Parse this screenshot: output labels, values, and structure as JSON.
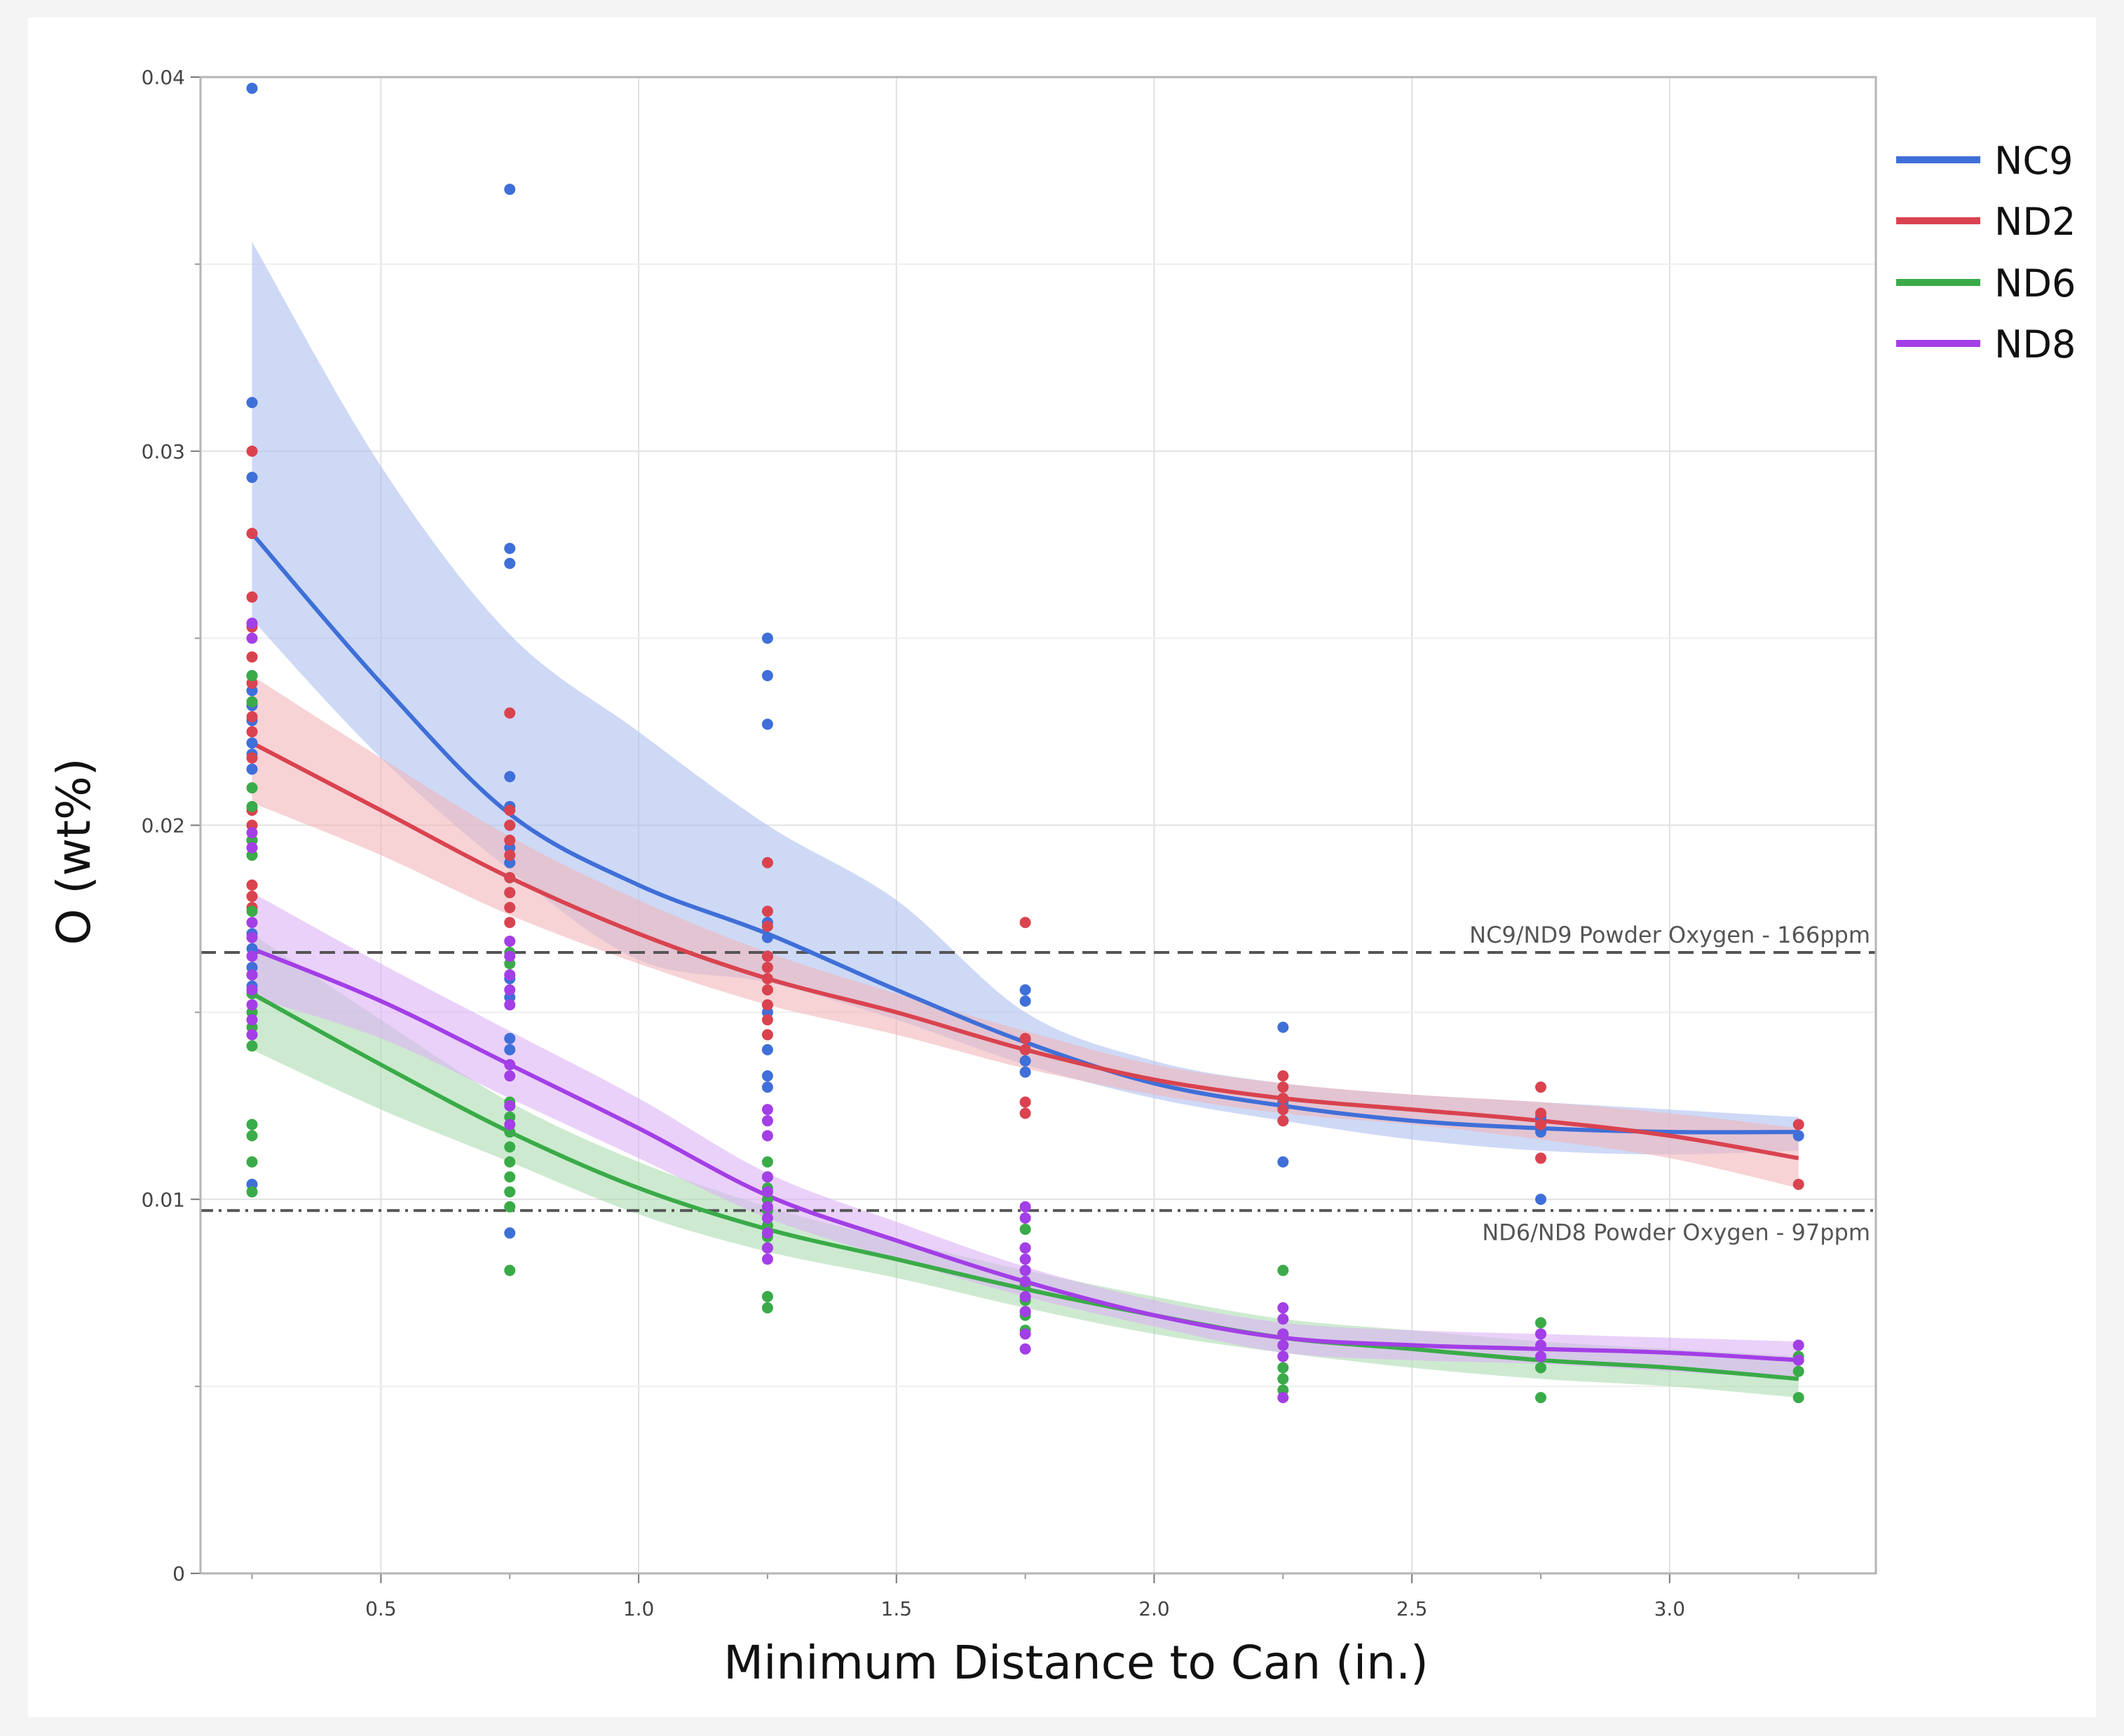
{
  "chart_data": {
    "type": "scatter",
    "title": "",
    "xlabel": "Minimum Distance to Can (in.)",
    "ylabel": "O (wt%)",
    "xlim": [
      0.15,
      3.4
    ],
    "ylim": [
      0,
      0.04
    ],
    "x_ticks": [
      "0.5",
      "1.0",
      "1.5",
      "2.0",
      "2.5",
      "3.0"
    ],
    "y_ticks": [
      "0",
      "0.01",
      "0.02",
      "0.03",
      "0.04"
    ],
    "grid": true,
    "legend_position": "right",
    "series": [
      {
        "name": "NC9",
        "color": "#3f6fd8",
        "band_color": "#aebff0",
        "fit": {
          "x": [
            0.25,
            0.5,
            0.75,
            1.0,
            1.25,
            1.5,
            1.75,
            2.0,
            2.25,
            2.5,
            2.75,
            3.0,
            3.25
          ],
          "y": [
            0.0278,
            0.0238,
            0.0203,
            0.0184,
            0.0171,
            0.0156,
            0.0142,
            0.0131,
            0.0125,
            0.0121,
            0.0119,
            0.0118,
            0.0118
          ]
        },
        "band": {
          "upper": [
            0.0356,
            0.0296,
            0.0251,
            0.0225,
            0.02,
            0.018,
            0.015,
            0.0137,
            0.0131,
            0.0128,
            0.0126,
            0.0124,
            0.0122
          ],
          "lower": [
            0.0255,
            0.0218,
            0.0188,
            0.0164,
            0.0158,
            0.0148,
            0.0136,
            0.0127,
            0.0121,
            0.0116,
            0.0113,
            0.0112,
            0.0113
          ]
        },
        "points": {
          "0.25": [
            0.0397,
            0.0313,
            0.0293,
            0.024,
            0.0236,
            0.0232,
            0.0228,
            0.0222,
            0.0219,
            0.0215,
            0.0171,
            0.0167,
            0.0162,
            0.0157,
            0.0104
          ],
          "0.75": [
            0.037,
            0.0274,
            0.027,
            0.0213,
            0.0205,
            0.02,
            0.0194,
            0.019,
            0.0186,
            0.0182,
            0.0159,
            0.0154,
            0.0143,
            0.014,
            0.0091
          ],
          "1.25": [
            0.025,
            0.024,
            0.0227,
            0.0174,
            0.017,
            0.0165,
            0.015,
            0.014,
            0.0133,
            0.013
          ],
          "1.75": [
            0.0156,
            0.0153,
            0.014,
            0.0137,
            0.0134
          ],
          "2.25": [
            0.0146,
            0.0126,
            0.0121,
            0.011
          ],
          "2.75": [
            0.0122,
            0.0118,
            0.01
          ],
          "3.25": [
            0.0117
          ]
        }
      },
      {
        "name": "ND2",
        "color": "#d9434f",
        "band_color": "#f2b6ba",
        "fit": {
          "x": [
            0.25,
            0.5,
            0.75,
            1.0,
            1.25,
            1.5,
            1.75,
            2.0,
            2.25,
            2.5,
            2.75,
            3.0,
            3.25
          ],
          "y": [
            0.0222,
            0.0204,
            0.0186,
            0.0171,
            0.0159,
            0.015,
            0.014,
            0.0132,
            0.0127,
            0.0124,
            0.0121,
            0.0117,
            0.0111
          ]
        },
        "band": {
          "upper": [
            0.024,
            0.0218,
            0.0197,
            0.018,
            0.0166,
            0.0155,
            0.0145,
            0.0136,
            0.0131,
            0.0128,
            0.0126,
            0.0123,
            0.0119
          ],
          "lower": [
            0.0206,
            0.0192,
            0.0176,
            0.0163,
            0.0152,
            0.0144,
            0.0135,
            0.0128,
            0.0123,
            0.012,
            0.0116,
            0.0111,
            0.0103
          ]
        },
        "points": {
          "0.25": [
            0.03,
            0.0278,
            0.0261,
            0.0253,
            0.0245,
            0.0238,
            0.0233,
            0.0229,
            0.0225,
            0.0218,
            0.0204,
            0.02,
            0.0196,
            0.0184,
            0.0181,
            0.0178
          ],
          "0.75": [
            0.023,
            0.0204,
            0.02,
            0.0196,
            0.0192,
            0.0186,
            0.0182,
            0.0178,
            0.0174
          ],
          "1.25": [
            0.019,
            0.0177,
            0.0173,
            0.0165,
            0.0162,
            0.0159,
            0.0156,
            0.0152,
            0.0148,
            0.0144
          ],
          "1.75": [
            0.0174,
            0.0143,
            0.014,
            0.0126,
            0.0123
          ],
          "2.25": [
            0.0133,
            0.013,
            0.0127,
            0.0124,
            0.0121
          ],
          "2.75": [
            0.013,
            0.0123,
            0.012,
            0.0111
          ],
          "3.25": [
            0.012,
            0.0104
          ]
        }
      },
      {
        "name": "ND6",
        "color": "#3aab48",
        "band_color": "#abdcb0",
        "fit": {
          "x": [
            0.25,
            0.5,
            0.75,
            1.0,
            1.25,
            1.5,
            1.75,
            2.0,
            2.25,
            2.5,
            2.75,
            3.0,
            3.25
          ],
          "y": [
            0.0155,
            0.0136,
            0.0118,
            0.0103,
            0.0092,
            0.0084,
            0.0076,
            0.0069,
            0.0063,
            0.006,
            0.0057,
            0.0055,
            0.0052
          ]
        },
        "band": {
          "upper": [
            0.0171,
            0.0148,
            0.0126,
            0.011,
            0.0098,
            0.0089,
            0.0081,
            0.0074,
            0.0068,
            0.0065,
            0.0062,
            0.006,
            0.0058
          ],
          "lower": [
            0.014,
            0.0124,
            0.011,
            0.0096,
            0.0086,
            0.0079,
            0.0071,
            0.0064,
            0.0059,
            0.0055,
            0.0052,
            0.005,
            0.0047
          ]
        },
        "points": {
          "0.25": [
            0.024,
            0.0233,
            0.021,
            0.0205,
            0.0196,
            0.0192,
            0.0177,
            0.016,
            0.0155,
            0.015,
            0.0146,
            0.0141,
            0.012,
            0.0117,
            0.011,
            0.0102
          ],
          "0.75": [
            0.0166,
            0.0163,
            0.0126,
            0.0122,
            0.0118,
            0.0114,
            0.011,
            0.0106,
            0.0102,
            0.0098,
            0.0081
          ],
          "1.25": [
            0.011,
            0.0106,
            0.0103,
            0.01,
            0.0097,
            0.0093,
            0.009,
            0.0087,
            0.0074,
            0.0071
          ],
          "1.75": [
            0.0092,
            0.0087,
            0.0081,
            0.0077,
            0.0073,
            0.0069,
            0.0065
          ],
          "2.25": [
            0.0081,
            0.0064,
            0.0061,
            0.0055,
            0.0052,
            0.0049
          ],
          "2.75": [
            0.0067,
            0.0064,
            0.0055,
            0.0047
          ],
          "3.25": [
            0.0058,
            0.0054,
            0.0047
          ]
        }
      },
      {
        "name": "ND8",
        "color": "#a33fe6",
        "band_color": "#dcb3f5",
        "fit": {
          "x": [
            0.25,
            0.5,
            0.75,
            1.0,
            1.25,
            1.5,
            1.75,
            2.0,
            2.25,
            2.5,
            2.75,
            3.0,
            3.25
          ],
          "y": [
            0.0167,
            0.0153,
            0.0136,
            0.0119,
            0.0101,
            0.0089,
            0.0078,
            0.0069,
            0.0063,
            0.0061,
            0.006,
            0.0059,
            0.0057
          ]
        },
        "band": {
          "upper": [
            0.0182,
            0.0163,
            0.0145,
            0.0127,
            0.0107,
            0.0094,
            0.0082,
            0.0073,
            0.0067,
            0.0065,
            0.0064,
            0.0063,
            0.0062
          ],
          "lower": [
            0.0154,
            0.0143,
            0.0127,
            0.0111,
            0.0095,
            0.0084,
            0.0074,
            0.0066,
            0.0059,
            0.0057,
            0.0056,
            0.0054,
            0.0052
          ]
        },
        "points": {
          "0.25": [
            0.0254,
            0.025,
            0.0198,
            0.0194,
            0.0174,
            0.017,
            0.0165,
            0.016,
            0.0156,
            0.0152,
            0.0148,
            0.0144
          ],
          "0.75": [
            0.0169,
            0.0165,
            0.016,
            0.0156,
            0.0152,
            0.0136,
            0.0133,
            0.0125,
            0.012
          ],
          "1.25": [
            0.0124,
            0.0121,
            0.0117,
            0.0106,
            0.0102,
            0.0098,
            0.0095,
            0.0091,
            0.0087,
            0.0084
          ],
          "1.75": [
            0.0098,
            0.0095,
            0.0087,
            0.0084,
            0.0081,
            0.0078,
            0.0074,
            0.007,
            0.0064,
            0.006
          ],
          "2.25": [
            0.0071,
            0.0068,
            0.0064,
            0.0061,
            0.0058,
            0.0047
          ],
          "2.75": [
            0.0064,
            0.0061,
            0.0058
          ],
          "3.25": [
            0.0061,
            0.0057
          ]
        }
      }
    ],
    "reference_lines": [
      {
        "y": 0.0166,
        "label": "NC9/ND9 Powder Oxygen - 166ppm",
        "style": "dashed",
        "color": "#555555"
      },
      {
        "y": 0.0097,
        "label": "ND6/ND8 Powder Oxygen - 97ppm",
        "style": "dashdot",
        "color": "#555555"
      }
    ]
  }
}
